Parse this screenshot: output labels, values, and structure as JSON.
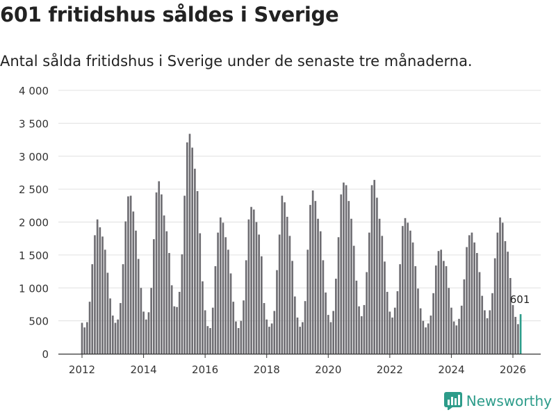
{
  "title": "601 fritidshus såldes i Sverige",
  "subtitle": "Antal sålda fritidshus i Sverige under de senaste tre månaderna.",
  "brand": "Newsworthy",
  "colors": {
    "bar": "#6e6d72",
    "highlight": "#2d9c8a",
    "grid": "#e0e0e0",
    "text": "#222222"
  },
  "chart_data": {
    "type": "bar",
    "start": "2012-01",
    "ylim": [
      0,
      4000
    ],
    "yticks": [
      0,
      500,
      1000,
      1500,
      2000,
      2500,
      3000,
      3500,
      4000
    ],
    "ytick_labels": [
      "0",
      "500",
      "1 000",
      "1 500",
      "2 000",
      "2 500",
      "3 000",
      "3 500",
      "4 000"
    ],
    "xticks": [
      2012,
      2014,
      2016,
      2018,
      2020,
      2022,
      2024,
      2026
    ],
    "highlight_label": "601",
    "values": [
      470,
      400,
      480,
      790,
      1360,
      1800,
      2040,
      1920,
      1780,
      1580,
      1230,
      840,
      580,
      470,
      520,
      770,
      1360,
      2010,
      2390,
      2400,
      2160,
      1870,
      1440,
      1000,
      640,
      520,
      630,
      1000,
      1740,
      2450,
      2620,
      2420,
      2100,
      1860,
      1530,
      1040,
      720,
      710,
      940,
      1510,
      2400,
      3210,
      3340,
      3130,
      2810,
      2470,
      1830,
      1100,
      660,
      420,
      390,
      700,
      1330,
      1840,
      2070,
      1990,
      1770,
      1580,
      1220,
      790,
      490,
      390,
      500,
      810,
      1420,
      2040,
      2230,
      2190,
      2000,
      1810,
      1480,
      770,
      520,
      410,
      460,
      650,
      1270,
      1810,
      2400,
      2300,
      2080,
      1790,
      1410,
      870,
      550,
      410,
      480,
      800,
      1580,
      2260,
      2480,
      2320,
      2050,
      1860,
      1420,
      930,
      590,
      480,
      650,
      1140,
      1770,
      2420,
      2600,
      2560,
      2320,
      2050,
      1640,
      1110,
      720,
      570,
      740,
      1240,
      1840,
      2560,
      2640,
      2370,
      2050,
      1790,
      1400,
      940,
      640,
      550,
      700,
      950,
      1360,
      1940,
      2060,
      1990,
      1870,
      1690,
      1330,
      990,
      690,
      500,
      400,
      460,
      580,
      920,
      1340,
      1560,
      1580,
      1410,
      1330,
      1000,
      700,
      490,
      430,
      530,
      730,
      1130,
      1620,
      1800,
      1840,
      1690,
      1530,
      1240,
      880,
      660,
      540,
      660,
      920,
      1450,
      1840,
      2070,
      1990,
      1710,
      1550,
      1150,
      740,
      560,
      450,
      601
    ]
  }
}
